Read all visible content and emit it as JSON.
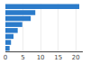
{
  "chart_data": {
    "type": "bar",
    "orientation": "horizontal",
    "categories": [
      null,
      null,
      null,
      null,
      null,
      null,
      null,
      null
    ],
    "values": [
      21,
      8.5,
      7.2,
      4.8,
      3.5,
      2.3,
      1.6,
      1.2
    ],
    "color": "#2b7bca",
    "xlim": [
      0,
      22
    ],
    "xticks": [
      0,
      5,
      10,
      15,
      20
    ],
    "grid": true,
    "tick_labels": "x"
  }
}
